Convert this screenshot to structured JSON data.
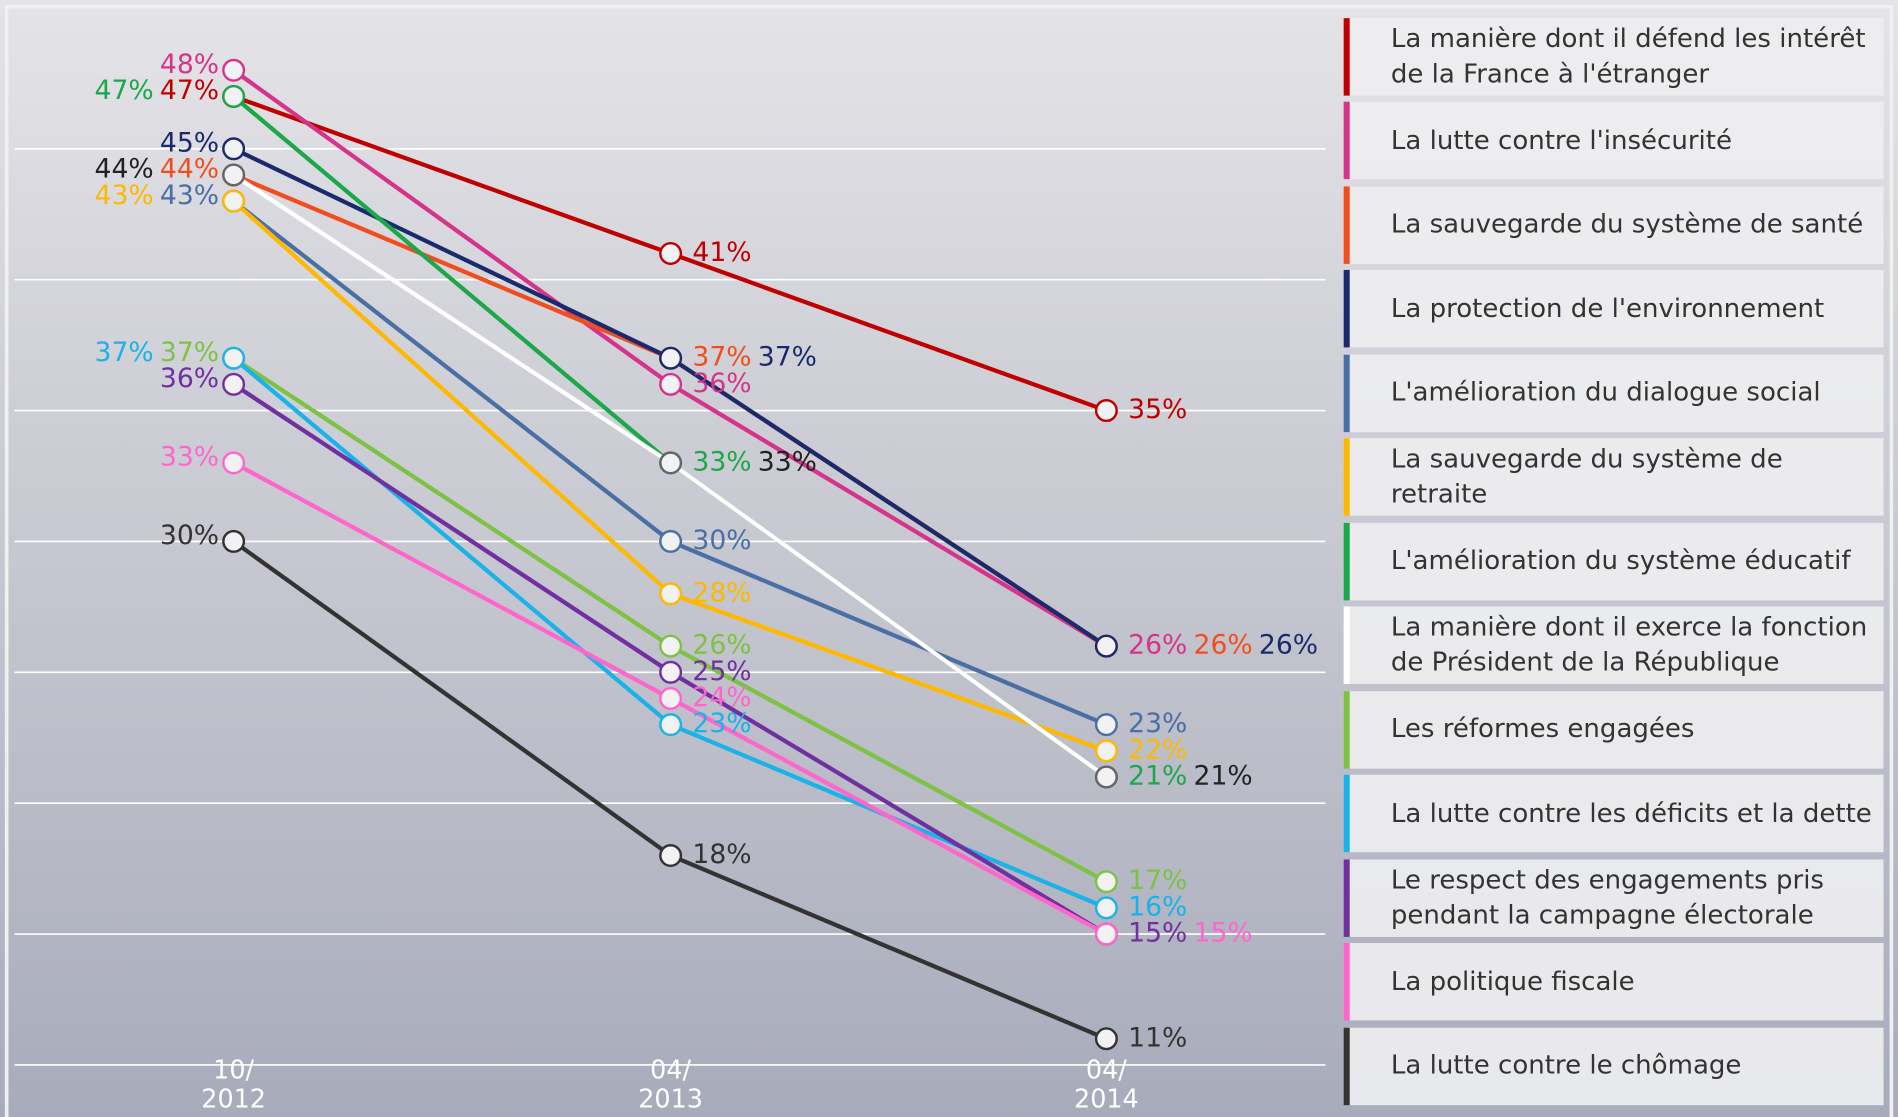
{
  "chart_data": {
    "type": "line",
    "categories": [
      "10/ 2012",
      "04/ 2013",
      "04/ 2014"
    ],
    "ylim": [
      8,
      50.5
    ],
    "yticks": [
      10,
      15,
      20,
      25,
      30,
      35,
      40,
      45
    ],
    "grid": true,
    "legend": "right",
    "series": [
      {
        "name": "La manière dont il défend les intérêt de la France à l'étranger",
        "color": "#c00000",
        "values": [
          47,
          41,
          35
        ],
        "value_labels": [
          "47%",
          "41%",
          "35%"
        ]
      },
      {
        "name": "La lutte contre l'insécurité",
        "color": "#d6338a",
        "values": [
          48,
          36,
          26
        ],
        "value_labels": [
          "48%",
          "36%",
          "26%"
        ]
      },
      {
        "name": "La sauvegarde du système de santé",
        "color": "#f04e1e",
        "values": [
          44,
          37,
          26
        ],
        "value_labels": [
          "44%",
          "37%",
          "26%"
        ]
      },
      {
        "name": "La protection de l'environnement",
        "color": "#1a2a6c",
        "values": [
          45,
          37,
          26
        ],
        "value_labels": [
          "45%",
          "37%",
          "26%"
        ]
      },
      {
        "name": "L'amélioration du dialogue social",
        "color": "#4a6fa5",
        "values": [
          43,
          30,
          23
        ],
        "value_labels": [
          "43%",
          "30%",
          "23%"
        ]
      },
      {
        "name": "La sauvegarde du système de retraite",
        "color": "#ffb800",
        "values": [
          43,
          28,
          22
        ],
        "value_labels": [
          "43%",
          "28%",
          "22%"
        ]
      },
      {
        "name": "L'amélioration du système éducatif",
        "color": "#1aa84a",
        "values": [
          47,
          33,
          21
        ],
        "value_labels": [
          "47%",
          "33%",
          "21%"
        ]
      },
      {
        "name": "La manière dont il exerce la fonction de Président de la République",
        "color": "#ffffff",
        "values": [
          44,
          33,
          21
        ],
        "value_labels": [
          "44%",
          "33%",
          "21%"
        ]
      },
      {
        "name": "Les réformes engagées",
        "color": "#7dc242",
        "values": [
          37,
          26,
          17
        ],
        "value_labels": [
          "37%",
          "26%",
          "17%"
        ]
      },
      {
        "name": "La lutte contre les déficits et la dette",
        "color": "#1ab2e8",
        "values": [
          37,
          23,
          16
        ],
        "value_labels": [
          "37%",
          "23%",
          "16%"
        ]
      },
      {
        "name": "Le respect des engagements pris pendant la campagne électorale",
        "color": "#7030a0",
        "values": [
          36,
          25,
          15
        ],
        "value_labels": [
          "36%",
          "25%",
          "15%"
        ]
      },
      {
        "name": "La politique fiscale",
        "color": "#ff66cc",
        "values": [
          33,
          24,
          15
        ],
        "value_labels": [
          "33%",
          "24%",
          "15%"
        ]
      },
      {
        "name": "La lutte contre le chômage",
        "color": "#333333",
        "values": [
          30,
          18,
          11
        ],
        "value_labels": [
          "30%",
          "18%",
          "11%"
        ]
      }
    ]
  }
}
